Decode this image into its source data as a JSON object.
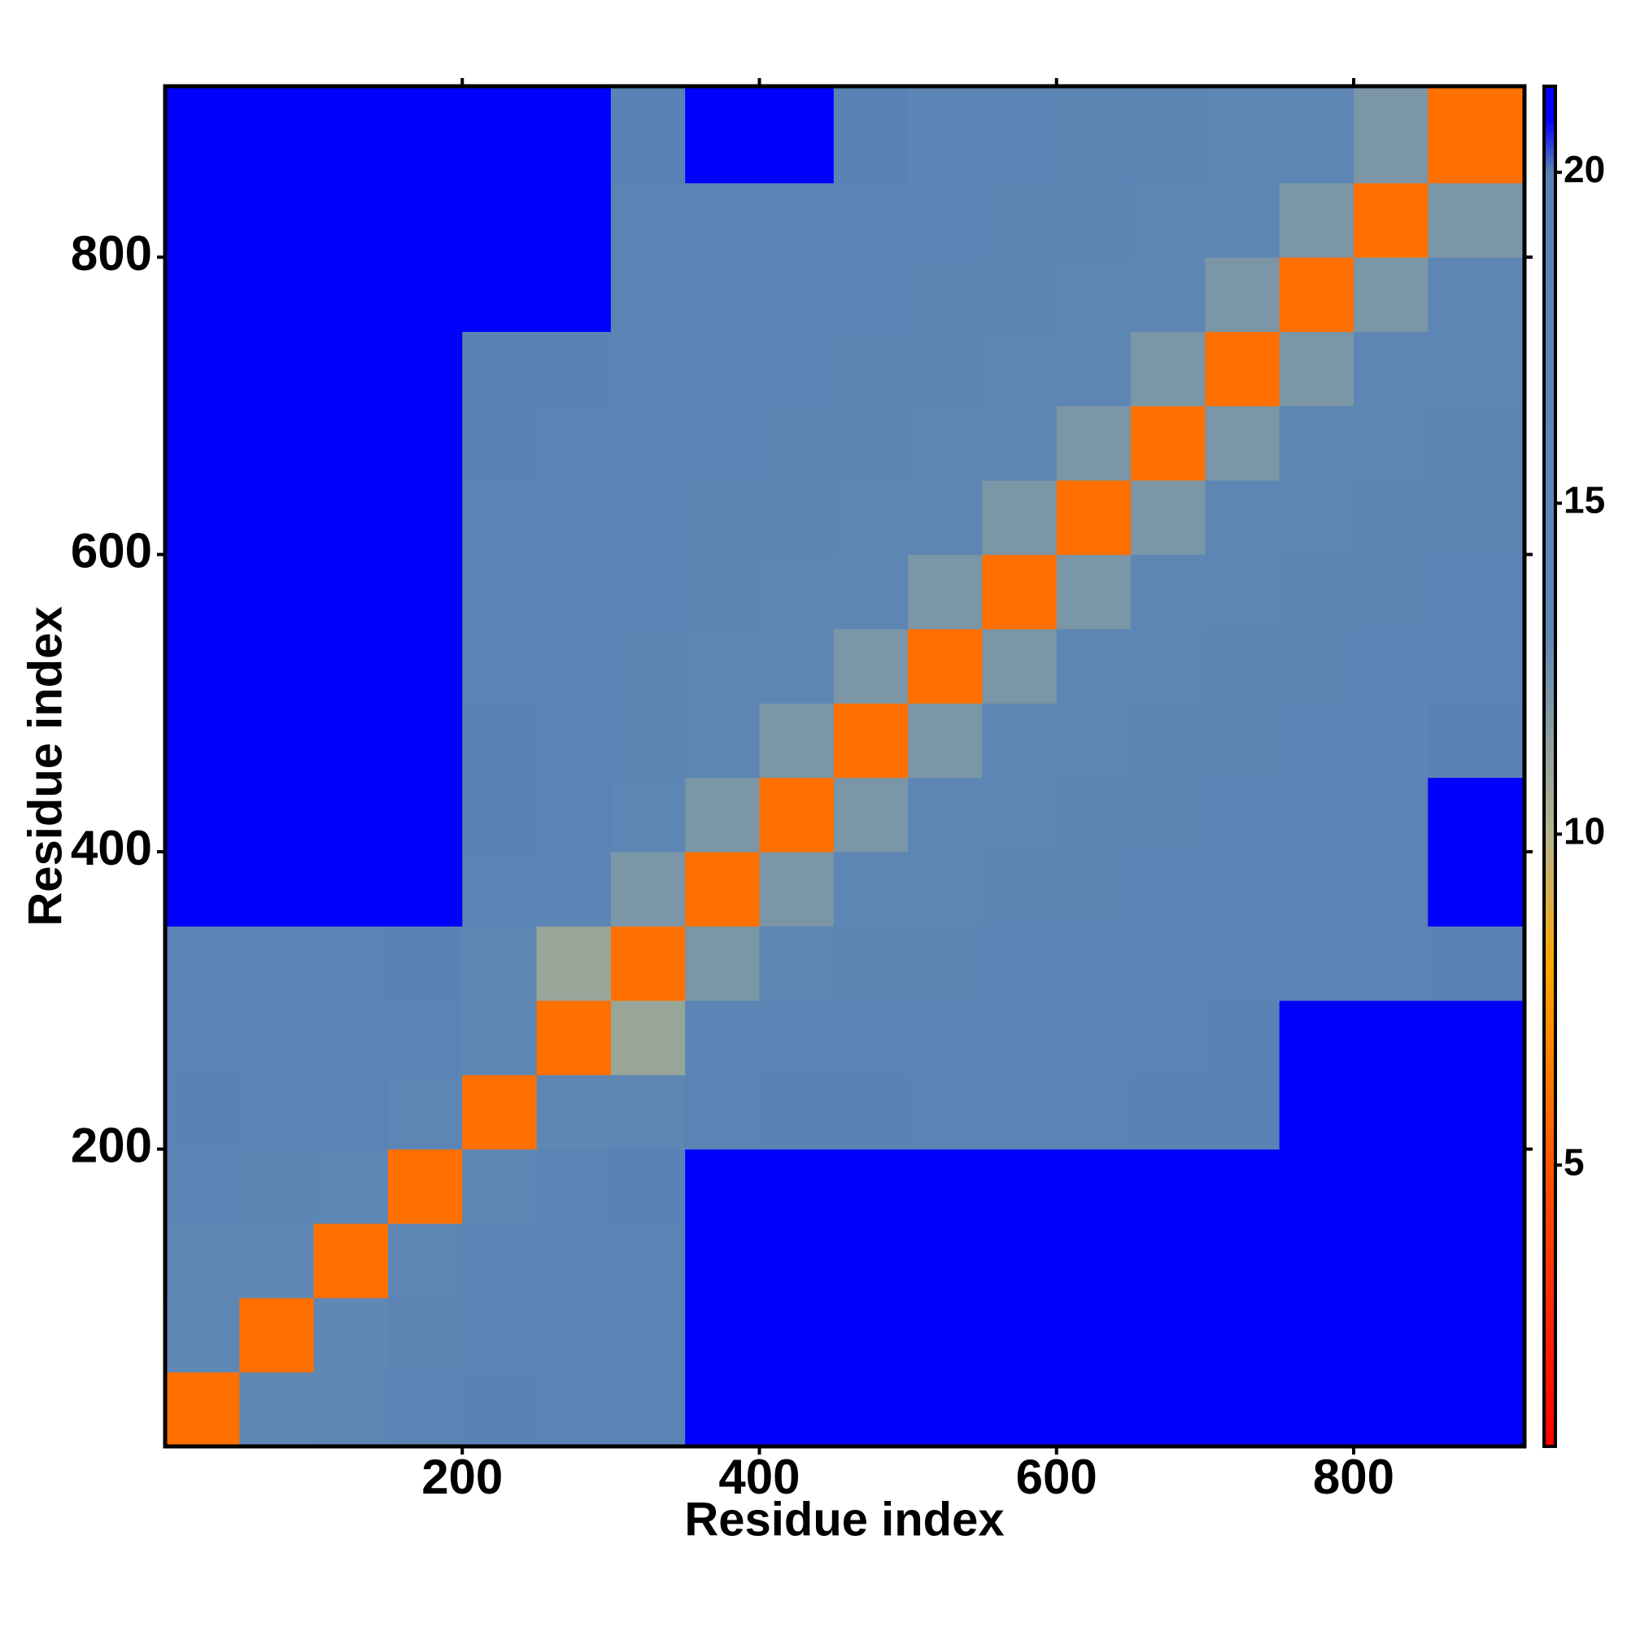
{
  "chart_data": {
    "type": "heatmap",
    "xlabel": "Residue index",
    "ylabel": "Residue index",
    "bins": [
      0,
      50,
      100,
      150,
      200,
      250,
      300,
      350,
      400,
      450,
      500,
      550,
      600,
      650,
      700,
      750,
      800,
      850,
      915
    ],
    "xlim": [
      0,
      915
    ],
    "ylim": [
      0,
      915
    ],
    "xticks": [
      200,
      400,
      600,
      800
    ],
    "yticks": [
      200,
      400,
      600,
      800
    ],
    "clim": [
      0.75,
      21.3
    ],
    "cticks": [
      5,
      10,
      15,
      20
    ],
    "colorscale": [
      [
        0.75,
        "#ff0000"
      ],
      [
        5,
        "#ff5500"
      ],
      [
        8,
        "#ffa500"
      ],
      [
        10,
        "#b4b48c"
      ],
      [
        13,
        "#5f87b4"
      ],
      [
        20,
        "#5a82b4"
      ],
      [
        20.8,
        "#0000ff"
      ],
      [
        21.3,
        "#0000ff"
      ]
    ],
    "values": [
      [
        6,
        13,
        15,
        17,
        20,
        19,
        19,
        21,
        21,
        21,
        21,
        21,
        21,
        21,
        21,
        21,
        21,
        21
      ],
      [
        13,
        6,
        13,
        16,
        19,
        18,
        18,
        21,
        21,
        21,
        21,
        21,
        21,
        21,
        21,
        21,
        21,
        21
      ],
      [
        15,
        13,
        6,
        14,
        18,
        18,
        18,
        21,
        21,
        21,
        21,
        21,
        21,
        21,
        21,
        21,
        21,
        21
      ],
      [
        17,
        16,
        14,
        6,
        15,
        19,
        20,
        21,
        21,
        21,
        21,
        21,
        21,
        21,
        21,
        21,
        21,
        21
      ],
      [
        20,
        19,
        18,
        15,
        6,
        13,
        15,
        18,
        20,
        20,
        19,
        18,
        19,
        20,
        20,
        21,
        21,
        21
      ],
      [
        19,
        18,
        18,
        19,
        13,
        6,
        11,
        17,
        19,
        19,
        18,
        18,
        18,
        19,
        20,
        21,
        21,
        21
      ],
      [
        19,
        18,
        18,
        20,
        15,
        11,
        6,
        12,
        15,
        16,
        16,
        17,
        17,
        18,
        18,
        19,
        19,
        20
      ],
      [
        21,
        21,
        21,
        21,
        18,
        17,
        12,
        6,
        12,
        14,
        15,
        16,
        16,
        17,
        17,
        19,
        19,
        21
      ],
      [
        21,
        21,
        21,
        21,
        20,
        19,
        15,
        12,
        6,
        12,
        14,
        15,
        16,
        16,
        17,
        17,
        19,
        21
      ],
      [
        21,
        21,
        21,
        21,
        20,
        19,
        16,
        14,
        12,
        6,
        12,
        14,
        15,
        16,
        16,
        17,
        17,
        20
      ],
      [
        21,
        21,
        21,
        21,
        19,
        18,
        16,
        15,
        14,
        12,
        6,
        12,
        14,
        15,
        16,
        16,
        17,
        17
      ],
      [
        21,
        21,
        21,
        21,
        18,
        18,
        17,
        16,
        15,
        14,
        12,
        6,
        12,
        14,
        15,
        16,
        16,
        17
      ],
      [
        21,
        21,
        21,
        21,
        19,
        18,
        17,
        16,
        16,
        15,
        14,
        12,
        6,
        12,
        14,
        15,
        16,
        16
      ],
      [
        21,
        21,
        21,
        21,
        20,
        19,
        18,
        17,
        16,
        16,
        15,
        14,
        12,
        6,
        12,
        14,
        15,
        16
      ],
      [
        21,
        21,
        21,
        21,
        20,
        20,
        18,
        17,
        17,
        16,
        16,
        15,
        14,
        12,
        6,
        12,
        14,
        15
      ],
      [
        21,
        21,
        21,
        21,
        21,
        21,
        19,
        19,
        17,
        17,
        16,
        16,
        15,
        14,
        12,
        6,
        12,
        14
      ],
      [
        21,
        21,
        21,
        21,
        21,
        21,
        19,
        19,
        19,
        17,
        17,
        16,
        16,
        15,
        14,
        12,
        6,
        12
      ],
      [
        21,
        21,
        21,
        21,
        21,
        21,
        20,
        21,
        21,
        20,
        17,
        17,
        16,
        16,
        15,
        14,
        12,
        6
      ]
    ]
  }
}
